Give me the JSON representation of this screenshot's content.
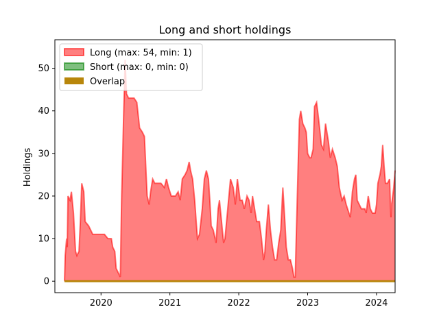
{
  "chart_data": {
    "type": "area",
    "title": "Long and short holdings",
    "xlabel": "",
    "ylabel": "Holdings",
    "xlim": [
      2019.33,
      2024.27
    ],
    "ylim": [
      -2.7,
      56.7
    ],
    "x_ticks": [
      2020,
      2021,
      2022,
      2023,
      2024
    ],
    "y_ticks": [
      0,
      10,
      20,
      30,
      40,
      50
    ],
    "grid": false,
    "legend_position": "upper-left",
    "series": [
      {
        "name": "Long (max: 54, min: 1)",
        "color": "#ff0000",
        "points": [
          [
            2019.47,
            0
          ],
          [
            2019.48,
            6
          ],
          [
            2019.5,
            10
          ],
          [
            2019.51,
            8
          ],
          [
            2019.52,
            20
          ],
          [
            2019.55,
            19
          ],
          [
            2019.57,
            21
          ],
          [
            2019.6,
            16
          ],
          [
            2019.63,
            7
          ],
          [
            2019.65,
            6
          ],
          [
            2019.68,
            7
          ],
          [
            2019.7,
            14
          ],
          [
            2019.72,
            23
          ],
          [
            2019.75,
            21
          ],
          [
            2019.77,
            14
          ],
          [
            2019.82,
            13
          ],
          [
            2019.85,
            12
          ],
          [
            2019.88,
            11
          ],
          [
            2019.92,
            11
          ],
          [
            2019.95,
            11
          ],
          [
            2020.0,
            11
          ],
          [
            2020.05,
            11
          ],
          [
            2020.1,
            10
          ],
          [
            2020.15,
            10
          ],
          [
            2020.17,
            8
          ],
          [
            2020.2,
            7
          ],
          [
            2020.22,
            3
          ],
          [
            2020.25,
            2
          ],
          [
            2020.28,
            1
          ],
          [
            2020.3,
            20
          ],
          [
            2020.33,
            40
          ],
          [
            2020.35,
            52
          ],
          [
            2020.37,
            44
          ],
          [
            2020.4,
            43
          ],
          [
            2020.42,
            43
          ],
          [
            2020.45,
            43
          ],
          [
            2020.48,
            43
          ],
          [
            2020.52,
            42
          ],
          [
            2020.56,
            36
          ],
          [
            2020.6,
            35
          ],
          [
            2020.63,
            34
          ],
          [
            2020.65,
            27
          ],
          [
            2020.67,
            20
          ],
          [
            2020.7,
            18
          ],
          [
            2020.72,
            21
          ],
          [
            2020.75,
            24
          ],
          [
            2020.78,
            23
          ],
          [
            2020.82,
            23
          ],
          [
            2020.85,
            23
          ],
          [
            2020.87,
            23
          ],
          [
            2020.92,
            22
          ],
          [
            2020.95,
            24
          ],
          [
            2020.98,
            22
          ],
          [
            2021.02,
            20
          ],
          [
            2021.05,
            20
          ],
          [
            2021.08,
            20
          ],
          [
            2021.12,
            21
          ],
          [
            2021.15,
            19
          ],
          [
            2021.18,
            24
          ],
          [
            2021.22,
            25
          ],
          [
            2021.25,
            26
          ],
          [
            2021.28,
            28
          ],
          [
            2021.3,
            26
          ],
          [
            2021.33,
            24
          ],
          [
            2021.36,
            19
          ],
          [
            2021.4,
            10
          ],
          [
            2021.43,
            11
          ],
          [
            2021.47,
            17
          ],
          [
            2021.5,
            24
          ],
          [
            2021.53,
            26
          ],
          [
            2021.56,
            24
          ],
          [
            2021.58,
            19
          ],
          [
            2021.6,
            13
          ],
          [
            2021.63,
            12
          ],
          [
            2021.67,
            9
          ],
          [
            2021.7,
            17
          ],
          [
            2021.72,
            19
          ],
          [
            2021.75,
            14
          ],
          [
            2021.78,
            9
          ],
          [
            2021.8,
            10
          ],
          [
            2021.84,
            17
          ],
          [
            2021.88,
            24
          ],
          [
            2021.92,
            22
          ],
          [
            2021.95,
            18
          ],
          [
            2021.98,
            24
          ],
          [
            2022.02,
            19
          ],
          [
            2022.05,
            19
          ],
          [
            2022.08,
            17
          ],
          [
            2022.12,
            20
          ],
          [
            2022.15,
            19
          ],
          [
            2022.18,
            16
          ],
          [
            2022.2,
            20
          ],
          [
            2022.23,
            17
          ],
          [
            2022.26,
            14
          ],
          [
            2022.3,
            14
          ],
          [
            2022.33,
            10
          ],
          [
            2022.36,
            5
          ],
          [
            2022.38,
            7
          ],
          [
            2022.4,
            12
          ],
          [
            2022.43,
            18
          ],
          [
            2022.46,
            12
          ],
          [
            2022.49,
            8
          ],
          [
            2022.52,
            5
          ],
          [
            2022.55,
            5
          ],
          [
            2022.58,
            9
          ],
          [
            2022.61,
            12
          ],
          [
            2022.64,
            22
          ],
          [
            2022.67,
            14
          ],
          [
            2022.69,
            8
          ],
          [
            2022.72,
            5
          ],
          [
            2022.75,
            5
          ],
          [
            2022.78,
            3
          ],
          [
            2022.8,
            1
          ],
          [
            2022.82,
            1
          ],
          [
            2022.85,
            20
          ],
          [
            2022.88,
            38
          ],
          [
            2022.9,
            40
          ],
          [
            2022.93,
            37
          ],
          [
            2022.96,
            36
          ],
          [
            2022.98,
            35
          ],
          [
            2023.0,
            30
          ],
          [
            2023.03,
            29
          ],
          [
            2023.05,
            29
          ],
          [
            2023.08,
            31
          ],
          [
            2023.1,
            41
          ],
          [
            2023.13,
            42
          ],
          [
            2023.16,
            38
          ],
          [
            2023.2,
            32
          ],
          [
            2023.23,
            31
          ],
          [
            2023.26,
            37
          ],
          [
            2023.3,
            33
          ],
          [
            2023.33,
            29
          ],
          [
            2023.36,
            31
          ],
          [
            2023.4,
            29
          ],
          [
            2023.43,
            27
          ],
          [
            2023.46,
            22
          ],
          [
            2023.5,
            19
          ],
          [
            2023.53,
            20
          ],
          [
            2023.56,
            18
          ],
          [
            2023.6,
            16
          ],
          [
            2023.62,
            15
          ],
          [
            2023.65,
            21
          ],
          [
            2023.68,
            24
          ],
          [
            2023.7,
            25
          ],
          [
            2023.72,
            19
          ],
          [
            2023.75,
            18
          ],
          [
            2023.78,
            17
          ],
          [
            2023.8,
            17
          ],
          [
            2023.83,
            17
          ],
          [
            2023.85,
            16
          ],
          [
            2023.88,
            20
          ],
          [
            2023.91,
            17
          ],
          [
            2023.94,
            16
          ],
          [
            2023.96,
            16
          ],
          [
            2023.98,
            16
          ],
          [
            2024.0,
            18
          ],
          [
            2024.02,
            23
          ],
          [
            2024.05,
            25
          ],
          [
            2024.07,
            27
          ],
          [
            2024.09,
            32
          ],
          [
            2024.11,
            27
          ],
          [
            2024.13,
            23
          ],
          [
            2024.16,
            23
          ],
          [
            2024.19,
            24
          ],
          [
            2024.2,
            19
          ],
          [
            2024.21,
            15
          ],
          [
            2024.22,
            18
          ],
          [
            2024.25,
            22
          ],
          [
            2024.27,
            26
          ]
        ]
      },
      {
        "name": "Short (max: 0, min: 0)",
        "color": "#008000",
        "points": [
          [
            2019.47,
            0
          ],
          [
            2024.27,
            0
          ]
        ]
      },
      {
        "name": "Overlap",
        "color": "#b8860b",
        "points": [
          [
            2019.47,
            0
          ],
          [
            2024.27,
            0
          ]
        ]
      }
    ]
  }
}
